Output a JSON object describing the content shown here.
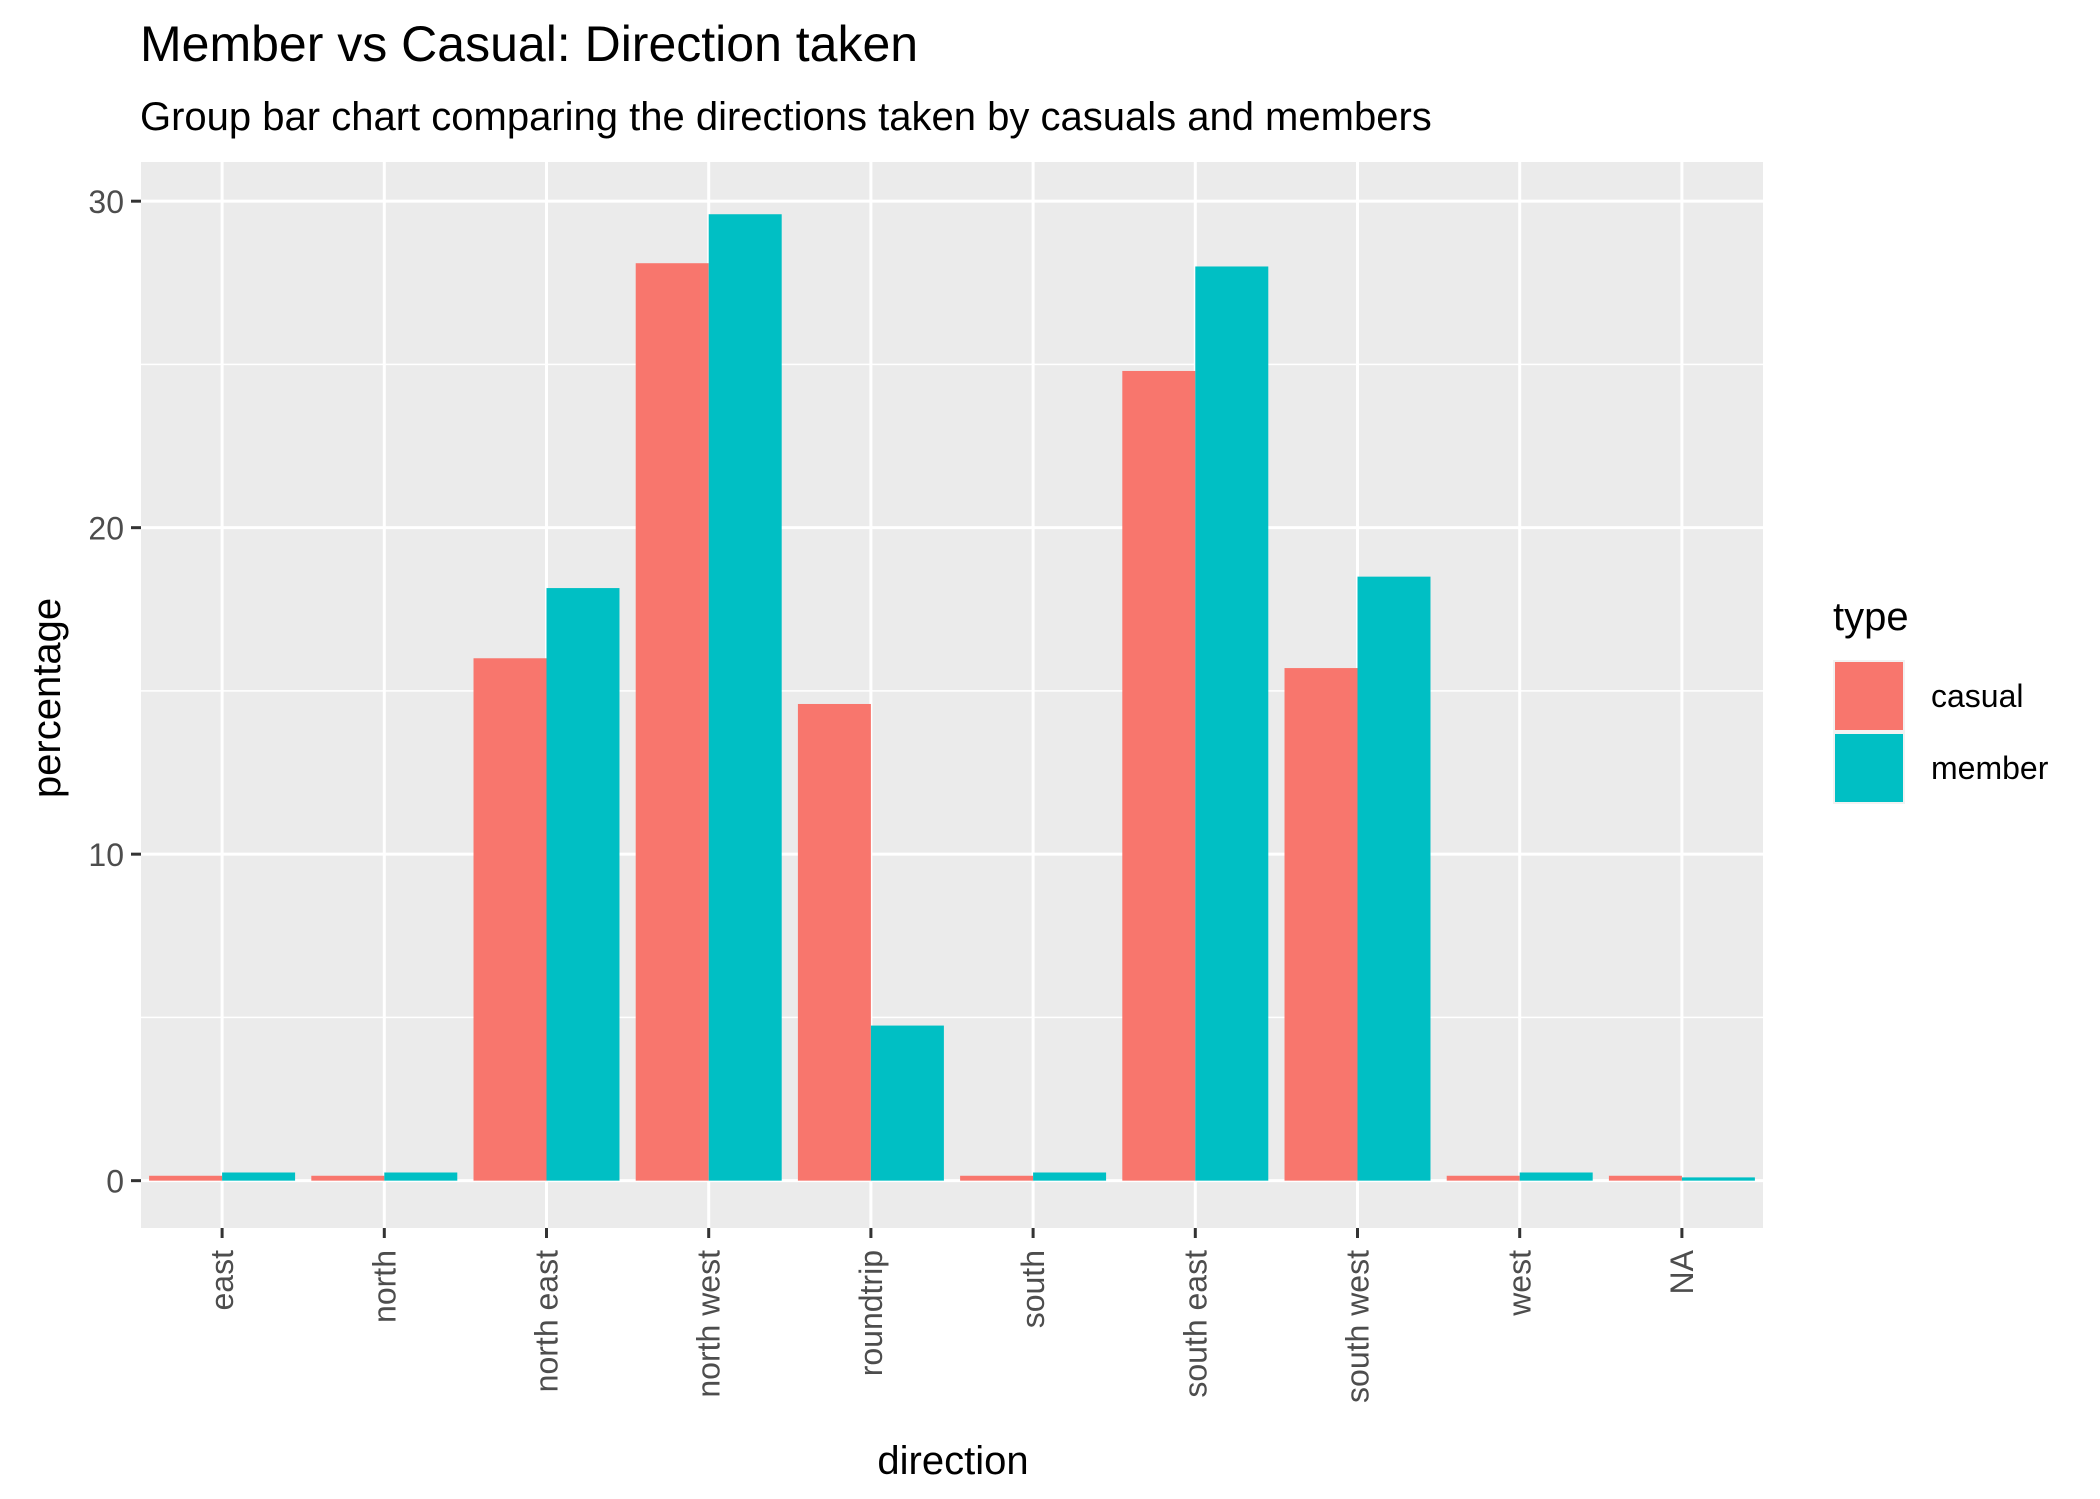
{
  "chart_data": {
    "type": "bar",
    "title": "Member vs Casual: Direction taken",
    "subtitle": "Group bar chart comparing the directions taken by casuals and members",
    "xlabel": "direction",
    "ylabel": "percentage",
    "categories": [
      "east",
      "north",
      "north east",
      "north west",
      "roundtrip",
      "south",
      "south east",
      "south west",
      "west",
      "NA"
    ],
    "series": [
      {
        "name": "casual",
        "color": "#F8766D",
        "values": [
          0.15,
          0.15,
          16.0,
          28.1,
          14.6,
          0.15,
          24.8,
          15.7,
          0.15,
          0.15
        ]
      },
      {
        "name": "member",
        "color": "#00BFC4",
        "values": [
          0.25,
          0.25,
          18.15,
          29.6,
          4.75,
          0.25,
          28.0,
          18.5,
          0.25,
          0.1
        ]
      }
    ],
    "ylim": [
      -1.45,
      31.2
    ],
    "yticks": [
      0,
      10,
      20,
      30
    ],
    "grid": true,
    "legend": {
      "title": "type",
      "position": "right"
    },
    "panel_background": "#EBEBEB",
    "grid_color": "#FFFFFF"
  }
}
